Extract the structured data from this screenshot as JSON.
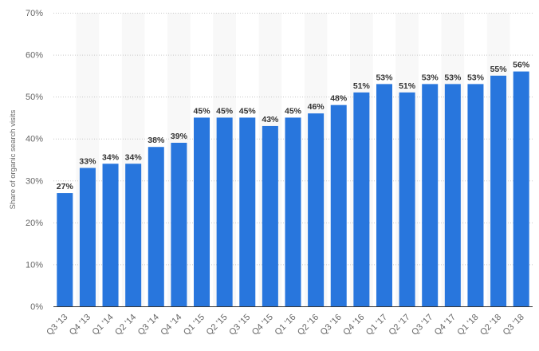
{
  "chart_data": {
    "type": "bar",
    "title": "",
    "xlabel": "",
    "ylabel": "Share of organic search visits",
    "ylim": [
      0,
      70
    ],
    "yticks": [
      "0%",
      "10%",
      "20%",
      "30%",
      "40%",
      "50%",
      "60%",
      "70%"
    ],
    "grid": true,
    "categories": [
      "Q3 '13",
      "Q4 '13",
      "Q1 '14",
      "Q2 '14",
      "Q3 '14",
      "Q4 '14",
      "Q1 '15",
      "Q2 '15",
      "Q3 '15",
      "Q4 '15",
      "Q1 '16",
      "Q2 '16",
      "Q3 '16",
      "Q4 '16",
      "Q1 '17",
      "Q2 '17",
      "Q3 '17",
      "Q4 '17",
      "Q1 '18",
      "Q2 '18",
      "Q3 '18"
    ],
    "values": [
      27,
      33,
      34,
      34,
      38,
      39,
      45,
      45,
      45,
      43,
      45,
      46,
      48,
      51,
      53,
      51,
      53,
      53,
      53,
      55,
      56
    ],
    "value_labels": [
      "27%",
      "33%",
      "34%",
      "34%",
      "38%",
      "39%",
      "45%",
      "45%",
      "45%",
      "43%",
      "45%",
      "46%",
      "48%",
      "51%",
      "53%",
      "51%",
      "53%",
      "53%",
      "53%",
      "55%",
      "56%"
    ],
    "bar_color": "#2876dd"
  }
}
